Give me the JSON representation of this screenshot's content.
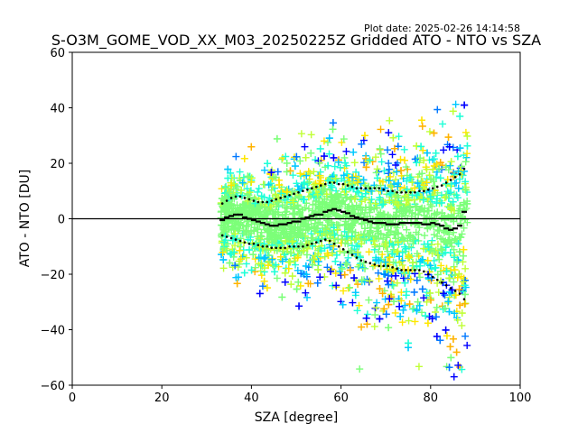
{
  "plot_date": "Plot date: 2025-02-26 14:14:58",
  "chart_data": {
    "type": "scatter",
    "title": "S-O3M_GOME_VOD_XX_M03_20250225Z Gridded ATO - NTO vs SZA",
    "xlabel": "SZA [degree]",
    "ylabel": "ATO - NTO [DU]",
    "xlim": [
      0,
      100
    ],
    "ylim": [
      -60,
      60
    ],
    "x_ticks": [
      0,
      20,
      40,
      60,
      80,
      100
    ],
    "y_ticks": [
      -60,
      -40,
      -20,
      0,
      20,
      40,
      60
    ],
    "x_tick_labels": [
      "0",
      "20",
      "40",
      "60",
      "80",
      "100"
    ],
    "y_tick_labels": [
      "−60",
      "−40",
      "−20",
      "0",
      "20",
      "40",
      "60"
    ],
    "grid": false,
    "reference_line_y": 0,
    "scatter_marker": "+",
    "scatter_colors": [
      "#0000ff",
      "#0078ff",
      "#00c8ff",
      "#1effd7",
      "#7cff79",
      "#c0ff36",
      "#ffe600",
      "#ffb300"
    ],
    "series": [
      {
        "x": [
          33.5,
          34.5,
          35.5,
          36.5,
          37.5,
          38.5,
          39.5,
          40.5,
          41.5,
          42.5,
          43.5,
          44.5,
          45.5,
          46.5,
          47.5,
          48.5,
          49.5,
          50.5,
          51.5,
          52.5,
          53.5,
          54.5,
          55.5,
          56.5,
          57.5,
          58.5,
          59.5,
          60.5,
          61.5,
          62.5,
          63.5,
          64.5,
          65.5,
          66.5,
          67.5,
          68.5,
          69.5,
          70.5,
          71.5,
          72.5,
          73.5,
          74.5,
          75.5,
          76.5,
          77.5,
          78.5,
          79.5,
          80.5,
          81.5,
          82.5,
          83.5,
          84.5,
          85.5,
          86.5,
          87.5
        ],
        "y": [
          -0.5,
          0.5,
          1.0,
          1.5,
          1.5,
          0.5,
          0.0,
          -0.5,
          -1.0,
          -1.5,
          -2.0,
          -2.5,
          -2.5,
          -2.0,
          -2.0,
          -1.5,
          -1.0,
          -1.0,
          0.0,
          0.5,
          1.0,
          1.5,
          1.5,
          2.5,
          3.0,
          3.5,
          3.0,
          2.5,
          2.0,
          1.0,
          0.5,
          0.0,
          -0.5,
          -1.0,
          -1.5,
          -1.5,
          -1.5,
          -2.0,
          -2.0,
          -2.0,
          -1.5,
          -1.5,
          -1.5,
          -1.5,
          -1.5,
          -2.0,
          -2.0,
          -1.5,
          -2.0,
          -2.5,
          -3.5,
          -4.0,
          -3.5,
          -2.5,
          2.5
        ]
      },
      {
        "x": [
          33.5,
          34.5,
          35.5,
          36.5,
          37.5,
          38.5,
          39.5,
          40.5,
          41.5,
          42.5,
          43.5,
          44.5,
          45.5,
          46.5,
          47.5,
          48.5,
          49.5,
          50.5,
          51.5,
          52.5,
          53.5,
          54.5,
          55.5,
          56.5,
          57.5,
          58.5,
          59.5,
          60.5,
          61.5,
          62.5,
          63.5,
          64.5,
          65.5,
          66.5,
          67.5,
          68.5,
          69.5,
          70.5,
          71.5,
          72.5,
          73.5,
          74.5,
          75.5,
          76.5,
          77.5,
          78.5,
          79.5,
          80.5,
          81.5,
          82.5,
          83.5,
          84.5,
          85.5,
          86.5,
          87.5
        ],
        "y": [
          5.5,
          6.5,
          7.5,
          8.0,
          8.0,
          7.5,
          7.0,
          6.5,
          6.0,
          6.0,
          6.0,
          6.5,
          7.0,
          7.5,
          8.0,
          8.5,
          9.0,
          9.5,
          10.0,
          10.5,
          11.0,
          11.5,
          12.0,
          12.5,
          13.0,
          13.0,
          12.5,
          12.5,
          12.0,
          11.5,
          11.0,
          11.0,
          11.0,
          11.0,
          11.0,
          11.0,
          10.5,
          10.0,
          10.0,
          9.5,
          9.5,
          9.5,
          9.5,
          9.5,
          10.0,
          10.0,
          10.5,
          11.0,
          11.5,
          12.0,
          13.0,
          14.0,
          15.0,
          16.0,
          18.0
        ]
      },
      {
        "x": [
          33.5,
          34.5,
          35.5,
          36.5,
          37.5,
          38.5,
          39.5,
          40.5,
          41.5,
          42.5,
          43.5,
          44.5,
          45.5,
          46.5,
          47.5,
          48.5,
          49.5,
          50.5,
          51.5,
          52.5,
          53.5,
          54.5,
          55.5,
          56.5,
          57.5,
          58.5,
          59.5,
          60.5,
          61.5,
          62.5,
          63.5,
          64.5,
          65.5,
          66.5,
          67.5,
          68.5,
          69.5,
          70.5,
          71.5,
          72.5,
          73.5,
          74.5,
          75.5,
          76.5,
          77.5,
          78.5,
          79.5,
          80.5,
          81.5,
          82.5,
          83.5,
          84.5,
          85.5,
          86.5,
          87.5
        ],
        "y": [
          -6.0,
          -6.5,
          -7.0,
          -7.5,
          -8.0,
          -8.5,
          -9.0,
          -9.0,
          -9.5,
          -10.0,
          -10.0,
          -10.5,
          -10.5,
          -10.5,
          -10.5,
          -10.0,
          -10.0,
          -10.0,
          -10.0,
          -9.5,
          -9.0,
          -8.5,
          -8.0,
          -7.5,
          -8.0,
          -9.0,
          -10.0,
          -11.0,
          -12.0,
          -13.0,
          -14.0,
          -15.0,
          -15.5,
          -16.0,
          -16.5,
          -17.0,
          -17.0,
          -17.0,
          -17.5,
          -18.0,
          -18.5,
          -18.5,
          -18.5,
          -18.5,
          -18.5,
          -19.0,
          -20.0,
          -21.0,
          -22.0,
          -23.0,
          -24.0,
          -25.0,
          -26.0,
          -27.0,
          -29.0
        ]
      }
    ]
  }
}
